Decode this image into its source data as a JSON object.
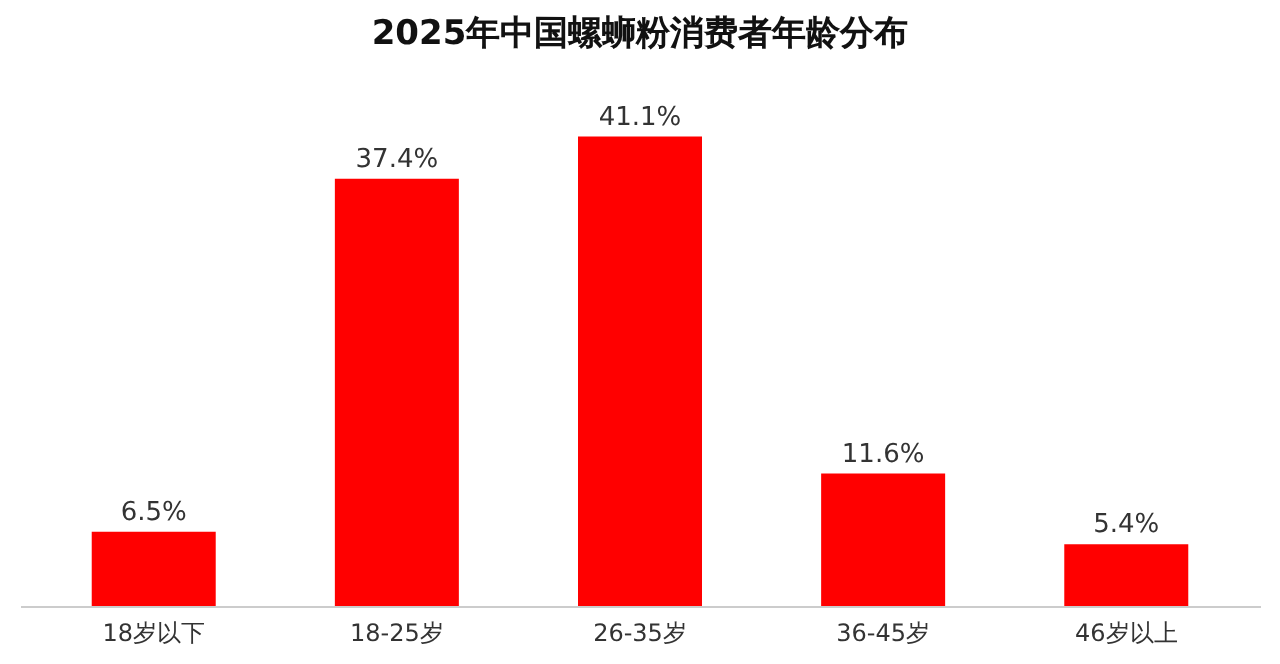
{
  "chart_data": {
    "type": "bar",
    "title": "2025年中国螺蛳粉消费者年龄分布",
    "categories": [
      "18岁以下",
      "18-25岁",
      "26-35岁",
      "36-45岁",
      "46岁以上"
    ],
    "values": [
      6.5,
      37.4,
      41.1,
      11.6,
      5.4
    ],
    "value_labels": [
      "6.5%",
      "37.4%",
      "41.1%",
      "11.6%",
      "5.4%"
    ],
    "color": "#ff0000",
    "tick_labels": "x"
  }
}
